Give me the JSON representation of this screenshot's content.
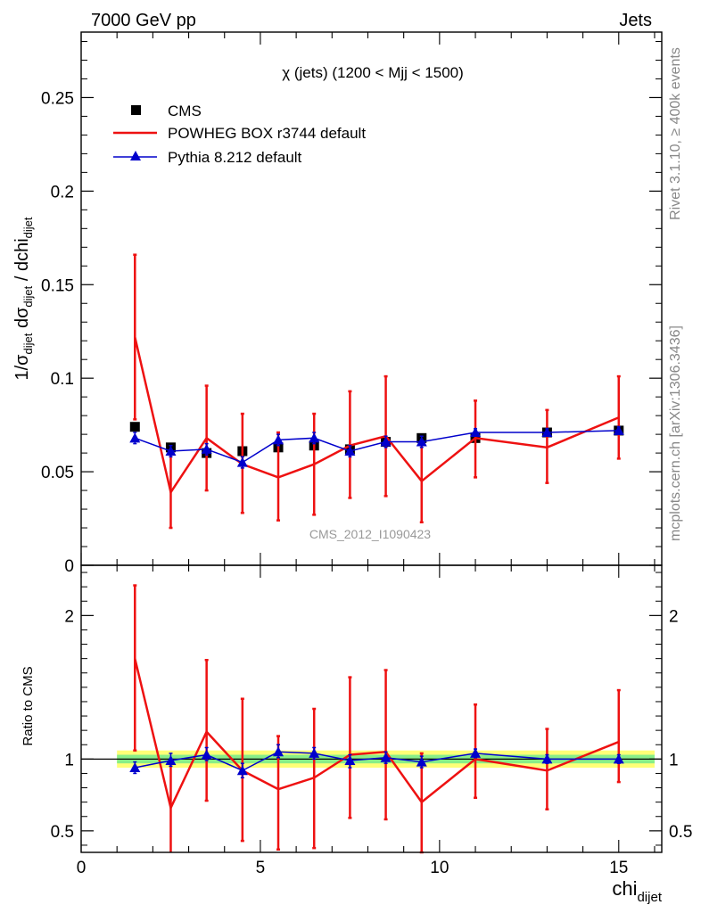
{
  "header": {
    "left": "7000 GeV pp",
    "right": "Jets"
  },
  "side_labels": {
    "rivet": "Rivet 3.1.10, ≥ 400k events",
    "mcplots": "mcplots.cern.ch [arXiv:1306.3436]"
  },
  "colors": {
    "cms": "#000000",
    "powheg": "#ee1111",
    "pythia": "#0000cc",
    "band_inner": "#88ee88",
    "band_outer": "#ffff77"
  },
  "chart_data": [
    {
      "type": "scatter",
      "panel": "main",
      "title": "χ (jets) (1200 < Mjj < 1500)",
      "watermark": "CMS_2012_I1090423",
      "ylabel": "1/σ_dijet dσ_dijet / dchi_dijet",
      "xlim": [
        0,
        16.2
      ],
      "ylim": [
        0,
        0.285
      ],
      "yticks": [
        0,
        0.05,
        0.1,
        0.15,
        0.2,
        0.25
      ],
      "ytick_labels": [
        "0",
        "0.05",
        "0.1",
        "0.15",
        "0.2",
        "0.25"
      ],
      "legend": {
        "position": "top-left",
        "entries": [
          "CMS",
          "POWHEG BOX r3744 default",
          "Pythia 8.212 default"
        ]
      },
      "x": [
        1.5,
        2.5,
        3.5,
        4.5,
        5.5,
        6.5,
        7.5,
        8.5,
        9.5,
        11,
        13,
        15
      ],
      "series": [
        {
          "name": "CMS",
          "style": "square",
          "values": [
            0.074,
            0.063,
            0.06,
            0.061,
            0.063,
            0.064,
            0.062,
            0.066,
            0.068,
            0.068,
            0.071,
            0.072
          ]
        },
        {
          "name": "POWHEG BOX r3744 default",
          "style": "line",
          "values": [
            0.122,
            0.039,
            0.068,
            0.054,
            0.047,
            0.054,
            0.064,
            0.069,
            0.045,
            0.068,
            0.063,
            0.079
          ],
          "err_low": [
            0.078,
            0.02,
            0.04,
            0.028,
            0.024,
            0.027,
            0.036,
            0.037,
            0.023,
            0.047,
            0.044,
            0.057
          ],
          "err_high": [
            0.166,
            0.061,
            0.096,
            0.081,
            0.071,
            0.081,
            0.093,
            0.101,
            0.066,
            0.088,
            0.083,
            0.101
          ]
        },
        {
          "name": "Pythia 8.212 default",
          "style": "line-triangle",
          "values": [
            0.068,
            0.061,
            0.062,
            0.055,
            0.067,
            0.068,
            0.061,
            0.066,
            0.066,
            0.071,
            0.071,
            0.072
          ],
          "err_low": [
            0.065,
            0.058,
            0.059,
            0.052,
            0.064,
            0.065,
            0.058,
            0.063,
            0.063,
            0.069,
            0.069,
            0.07
          ],
          "err_high": [
            0.071,
            0.064,
            0.065,
            0.058,
            0.07,
            0.071,
            0.064,
            0.069,
            0.069,
            0.073,
            0.073,
            0.074
          ]
        }
      ]
    },
    {
      "type": "scatter",
      "panel": "ratio",
      "ylabel": "Ratio to CMS",
      "xlabel": "chi_dijet",
      "xlim": [
        0,
        16.2
      ],
      "ylim": [
        0.35,
        2.35
      ],
      "yticks": [
        0.5,
        1,
        2
      ],
      "ytick_labels": [
        "0.5",
        "1",
        "2"
      ],
      "xticks": [
        0,
        5,
        10,
        15
      ],
      "xtick_labels": [
        "0",
        "5",
        "10",
        "15"
      ],
      "reference_band": {
        "x_range": [
          1,
          16
        ],
        "inner": [
          0.97,
          1.03
        ],
        "outer": [
          0.94,
          1.06
        ]
      },
      "x": [
        1.5,
        2.5,
        3.5,
        4.5,
        5.5,
        6.5,
        7.5,
        8.5,
        9.5,
        11,
        13,
        15
      ],
      "series": [
        {
          "name": "POWHEG BOX r3744 default",
          "style": "line",
          "values": [
            1.7,
            0.66,
            1.19,
            0.92,
            0.79,
            0.87,
            1.03,
            1.05,
            0.7,
            1.0,
            0.92,
            1.12
          ],
          "err_low": [
            1.06,
            0.32,
            0.71,
            0.43,
            0.37,
            0.38,
            0.59,
            0.58,
            0.35,
            0.73,
            0.65,
            0.84
          ],
          "err_high": [
            2.21,
            0.99,
            1.69,
            1.42,
            1.16,
            1.35,
            1.57,
            1.62,
            1.04,
            1.38,
            1.21,
            1.48
          ]
        },
        {
          "name": "Pythia 8.212 default",
          "style": "line-triangle",
          "values": [
            0.94,
            0.99,
            1.03,
            0.92,
            1.05,
            1.04,
            0.99,
            1.01,
            0.98,
            1.04,
            1.0,
            1.0
          ],
          "err_low": [
            0.9,
            0.95,
            0.99,
            0.87,
            1.01,
            1.0,
            0.94,
            0.97,
            0.94,
            1.01,
            0.97,
            0.97
          ],
          "err_high": [
            0.98,
            1.04,
            1.08,
            0.97,
            1.1,
            1.08,
            1.03,
            1.05,
            1.02,
            1.07,
            1.03,
            1.03
          ]
        }
      ]
    }
  ]
}
